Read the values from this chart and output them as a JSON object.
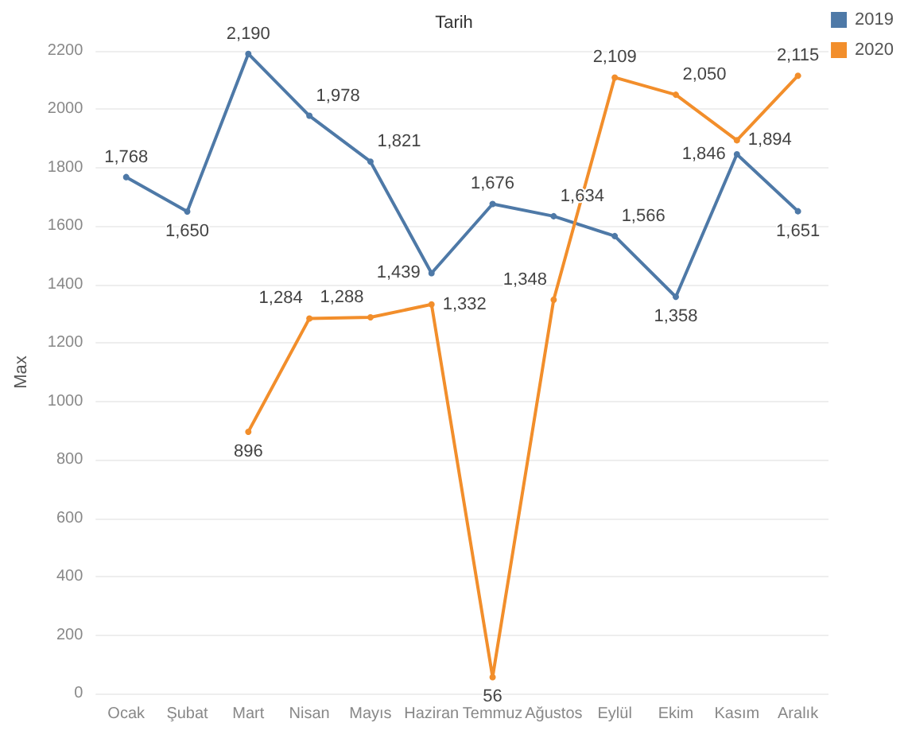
{
  "chart_data": {
    "type": "line",
    "xlabel": "Tarih",
    "ylabel": "Max",
    "categories": [
      "Ocak",
      "Şubat",
      "Mart",
      "Nisan",
      "Mayıs",
      "Haziran",
      "Temmuz",
      "Ağustos",
      "Eylül",
      "Ekim",
      "Kasım",
      "Aralık"
    ],
    "series": [
      {
        "name": "2019",
        "color": "#4e79a7",
        "values": [
          1768,
          1650,
          2190,
          1978,
          1821,
          1439,
          1676,
          1634,
          1566,
          1358,
          1846,
          1651
        ],
        "value_labels": [
          "1,768",
          "1,650",
          "2,190",
          "1,978",
          "1,821",
          "1,439",
          "1,676",
          "1,634",
          "1,566",
          "1,358",
          "1,846",
          "1,651"
        ]
      },
      {
        "name": "2020",
        "color": "#f28e2b",
        "values": [
          null,
          null,
          896,
          1284,
          1288,
          1332,
          56,
          1348,
          2109,
          2050,
          1894,
          2115
        ],
        "value_labels": [
          null,
          null,
          "896",
          "1,284",
          "1,288",
          "1,332",
          "56",
          "1,348",
          "2,109",
          "2,050",
          "1,894",
          "2,115"
        ]
      }
    ],
    "ylim": [
      0,
      2200
    ],
    "yticks": [
      0,
      200,
      400,
      600,
      800,
      1000,
      1200,
      1400,
      1600,
      1800,
      2000,
      2200
    ],
    "grid": "y",
    "legend": "top right",
    "marker": "circle",
    "line_style": "solid"
  }
}
